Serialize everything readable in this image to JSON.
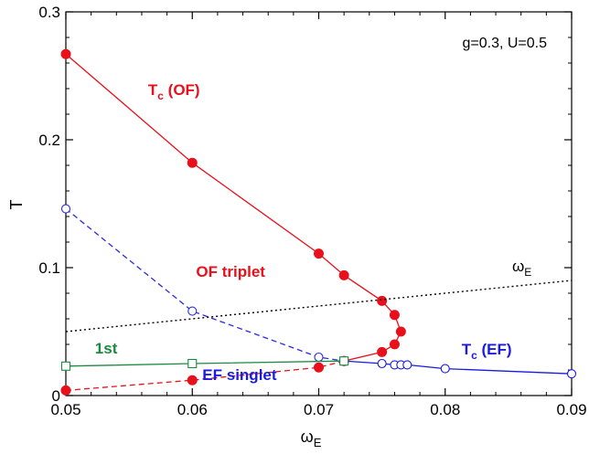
{
  "chart_data": {
    "type": "line",
    "x_axis": {
      "label": "ω",
      "label_sub": "E",
      "min": 0.05,
      "max": 0.09,
      "ticks": [
        0.05,
        0.06,
        0.07,
        0.08,
        0.09
      ],
      "tick_labels": [
        "0.05",
        "0.06",
        "0.07",
        "0.08",
        "0.09"
      ]
    },
    "y_axis": {
      "label": "T",
      "min": 0,
      "max": 0.3,
      "ticks": [
        0,
        0.1,
        0.2,
        0.3
      ],
      "tick_labels": [
        "0",
        "0.1",
        "0.2",
        "0.3"
      ]
    },
    "grid": false,
    "parameters_text": "g=0.3, U=0.5",
    "series": [
      {
        "key": "tc_of",
        "color": "#e8101a",
        "dash": "solid",
        "marker": "filled-circle",
        "points": [
          [
            0.05,
            0.267
          ],
          [
            0.06,
            0.182
          ],
          [
            0.07,
            0.111
          ],
          [
            0.072,
            0.094
          ],
          [
            0.075,
            0.074
          ],
          [
            0.076,
            0.063
          ],
          [
            0.0765,
            0.05
          ],
          [
            0.076,
            0.04
          ],
          [
            0.075,
            0.034
          ],
          [
            0.072,
            0.027
          ]
        ]
      },
      {
        "key": "ef_singlet",
        "color": "#e8101a",
        "dash": "dashed",
        "marker": "filled-circle",
        "points": [
          [
            0.05,
            0.004
          ],
          [
            0.06,
            0.012
          ],
          [
            0.07,
            0.022
          ],
          [
            0.072,
            0.027
          ]
        ]
      },
      {
        "key": "of_triplet",
        "color": "#2a2ae0",
        "dash": "dashed",
        "marker": "open-circle",
        "points": [
          [
            0.05,
            0.146
          ],
          [
            0.06,
            0.066
          ],
          [
            0.07,
            0.03
          ],
          [
            0.072,
            0.027
          ]
        ]
      },
      {
        "key": "tc_ef",
        "color": "#1a1ae0",
        "dash": "solid",
        "marker": "open-circle",
        "points": [
          [
            0.072,
            0.027
          ],
          [
            0.075,
            0.025
          ],
          [
            0.076,
            0.024
          ],
          [
            0.0765,
            0.024
          ],
          [
            0.077,
            0.024
          ],
          [
            0.08,
            0.021
          ],
          [
            0.09,
            0.017
          ]
        ]
      },
      {
        "key": "first_order",
        "color": "#1a8c40",
        "dash": "solid",
        "marker": "open-square",
        "points": [
          [
            0.05,
            0.023
          ],
          [
            0.06,
            0.025
          ],
          [
            0.072,
            0.027
          ]
        ]
      },
      {
        "key": "omega_e",
        "color": "#000000",
        "dash": "dotted",
        "marker": "none",
        "points": [
          [
            0.05,
            0.05
          ],
          [
            0.09,
            0.09
          ]
        ]
      }
    ],
    "annotations": [
      {
        "key": "tc_of",
        "main": "T",
        "sub": "c",
        "rest": " (OF)",
        "color": "#e8101a",
        "x": 0.0565,
        "y": 0.235
      },
      {
        "key": "of_triplet",
        "main": "OF triplet",
        "sub": "",
        "rest": "",
        "color": "#e8101a",
        "x": 0.0603,
        "y": 0.093
      },
      {
        "key": "first_order",
        "main": "1st",
        "sub": "",
        "rest": "",
        "color": "#1a8c40",
        "x": 0.0523,
        "y": 0.033
      },
      {
        "key": "ef_singlet",
        "main": "EF singlet",
        "sub": "",
        "rest": "",
        "color": "#1a1ae0",
        "x": 0.0608,
        "y": 0.012
      },
      {
        "key": "tc_ef",
        "main": "T",
        "sub": "c",
        "rest": " (EF)",
        "color": "#1a1ae0",
        "x": 0.0813,
        "y": 0.032
      },
      {
        "key": "omega_e",
        "main": "ω",
        "sub": "E",
        "rest": "",
        "color": "#000000",
        "x": 0.0853,
        "y": 0.097
      }
    ]
  }
}
